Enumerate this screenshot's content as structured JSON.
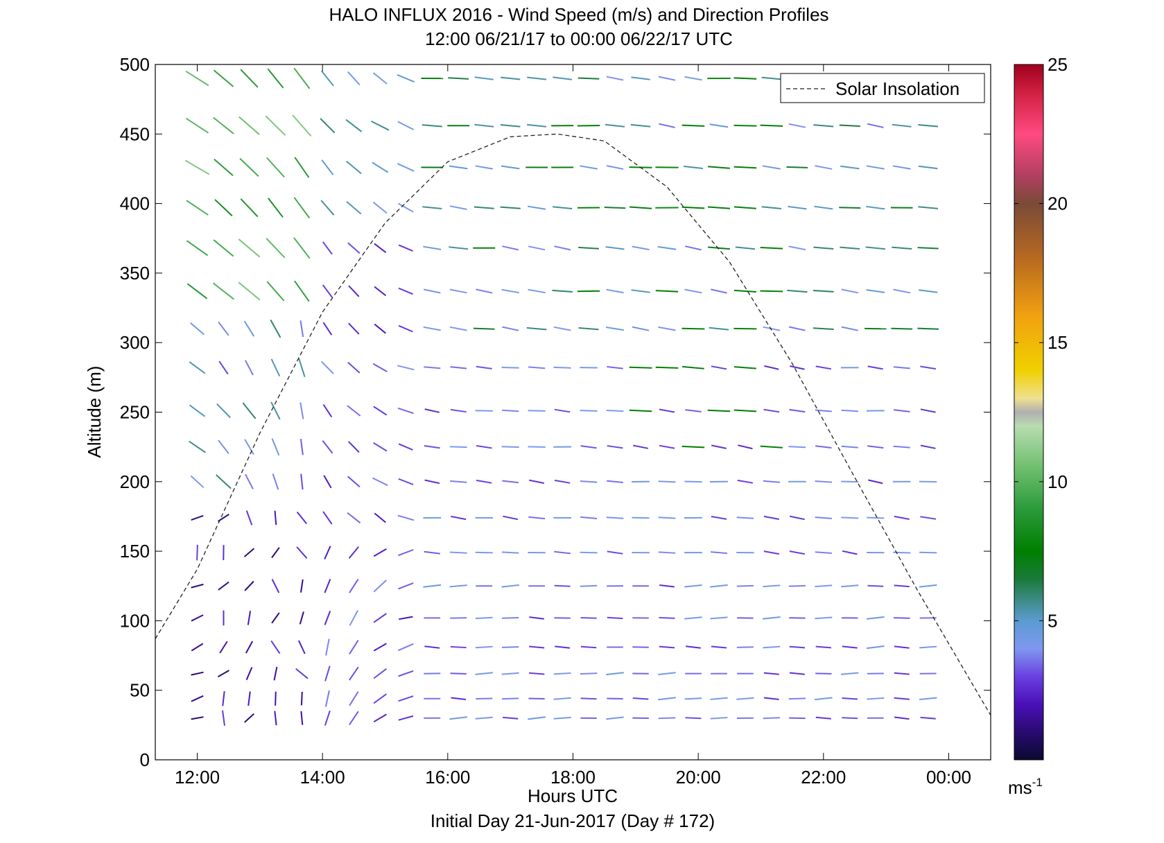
{
  "chart_data": {
    "type": "scatter",
    "title": "HALO INFLUX 2016 - Wind Speed (m/s) and Direction Profiles",
    "subtitle": "12:00 06/21/17 to 00:00 06/22/17  UTC",
    "xlabel": "Hours UTC",
    "ylabel": "Altitude (m)",
    "footnote": "Initial Day 21-Jun-2017 (Day # 172)",
    "x_ticks": [
      "12:00",
      "14:00",
      "16:00",
      "18:00",
      "20:00",
      "22:00",
      "00:00"
    ],
    "x_tick_hours": [
      12,
      14,
      16,
      18,
      20,
      22,
      24
    ],
    "xlim_hours": [
      11.33,
      24.67
    ],
    "y_ticks": [
      0,
      50,
      100,
      150,
      200,
      250,
      300,
      350,
      400,
      450,
      500
    ],
    "ylim": [
      0,
      500
    ],
    "grid": false,
    "legend": {
      "placement": "top-right",
      "entries": [
        "Solar Insolation"
      ]
    },
    "colorbar": {
      "label": "ms",
      "label_superscript": "-1",
      "ticks": [
        5,
        10,
        15,
        20,
        25
      ],
      "range": [
        0,
        25
      ],
      "colors": [
        {
          "v": 0,
          "c": "#0a0a30"
        },
        {
          "v": 1,
          "c": "#2a0a70"
        },
        {
          "v": 2,
          "c": "#4a10b8"
        },
        {
          "v": 3,
          "c": "#6a40e0"
        },
        {
          "v": 4,
          "c": "#7f98f0"
        },
        {
          "v": 5,
          "c": "#5b9bd0"
        },
        {
          "v": 5.8,
          "c": "#3a8a80"
        },
        {
          "v": 6.5,
          "c": "#1a7a3a"
        },
        {
          "v": 7.5,
          "c": "#007f00"
        },
        {
          "v": 9,
          "c": "#2a9a3a"
        },
        {
          "v": 10.5,
          "c": "#6fbf6f"
        },
        {
          "v": 12,
          "c": "#b8dcb0"
        },
        {
          "v": 12.5,
          "c": "#b0b0b0"
        },
        {
          "v": 13,
          "c": "#f0e090"
        },
        {
          "v": 14,
          "c": "#f0d000"
        },
        {
          "v": 16,
          "c": "#f0a010"
        },
        {
          "v": 18,
          "c": "#b86a20"
        },
        {
          "v": 20,
          "c": "#7a4a38"
        },
        {
          "v": 21,
          "c": "#b04060"
        },
        {
          "v": 22.5,
          "c": "#ff4a80"
        },
        {
          "v": 24,
          "c": "#d02040"
        },
        {
          "v": 25,
          "c": "#a00020"
        }
      ]
    },
    "solar_insolation": {
      "style": "dashed",
      "color": "#000000",
      "peak_hour": 17.75,
      "peak_altitude": 450,
      "points": [
        [
          11.33,
          87
        ],
        [
          12,
          137
        ],
        [
          13,
          235
        ],
        [
          14,
          322
        ],
        [
          15,
          386
        ],
        [
          16,
          430
        ],
        [
          17,
          448
        ],
        [
          17.75,
          450
        ],
        [
          18.5,
          445
        ],
        [
          19.5,
          412
        ],
        [
          20.5,
          358
        ],
        [
          21.5,
          285
        ],
        [
          22.5,
          203
        ],
        [
          23.5,
          122
        ],
        [
          24.67,
          32
        ]
      ]
    },
    "wind_barbs": {
      "altitudes": [
        30,
        44,
        62,
        81,
        102,
        125,
        149,
        174,
        200,
        225,
        251,
        282,
        310,
        337,
        368,
        397,
        426,
        456,
        490
      ],
      "times_hours": [
        12,
        12.42,
        12.83,
        13.25,
        13.67,
        14.08,
        14.5,
        14.92,
        15.33,
        15.75,
        16.17,
        16.58,
        17,
        17.42,
        17.83,
        18.25,
        18.67,
        19.08,
        19.5,
        19.92,
        20.33,
        20.75,
        21.17,
        21.58,
        22,
        22.42,
        22.83,
        23.25,
        23.67
      ],
      "typical_direction_deg": 270,
      "typical_speed_ms": 3.5
    }
  }
}
